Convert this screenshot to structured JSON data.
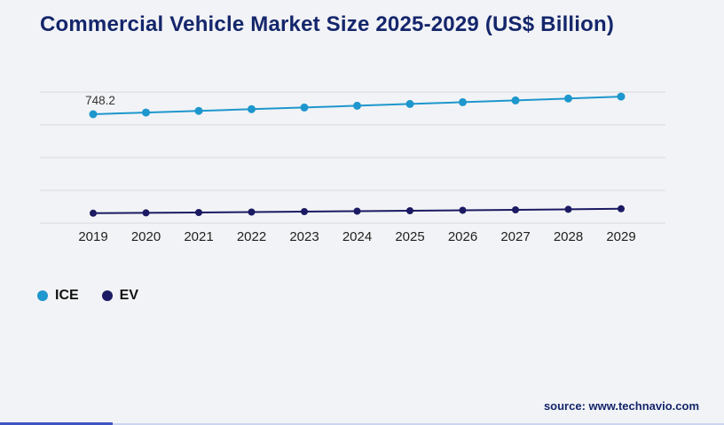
{
  "page": {
    "title": "Commercial Vehicle Market Size 2025-2029 (US$ Billion)",
    "source_text": "source: www.technavio.com",
    "background": "#f2f3f6"
  },
  "legend": {
    "items": [
      {
        "label": "ICE",
        "color": "#1d97cd"
      },
      {
        "label": "EV",
        "color": "#1b1a63"
      }
    ]
  },
  "chart_data": {
    "type": "line",
    "title": "Commercial Vehicle Market Size 2025-2029 (US$ Billion)",
    "xlabel": "",
    "ylabel": "",
    "x": [
      "2019",
      "2020",
      "2021",
      "2022",
      "2023",
      "2024",
      "2025",
      "2026",
      "2027",
      "2028",
      "2029"
    ],
    "series": [
      {
        "name": "ICE",
        "color": "#1d97cd",
        "values": [
          748.2,
          759.5,
          770.9,
          782.5,
          794.3,
          806.2,
          818.3,
          830.6,
          843.1,
          855.8,
          868.7
        ]
      },
      {
        "name": "EV",
        "color": "#1b1a63",
        "values": [
          68.0,
          70.5,
          73.2,
          76.0,
          78.9,
          81.9,
          85.0,
          88.2,
          91.5,
          95.0,
          98.6
        ]
      }
    ],
    "data_labels": [
      {
        "series": "ICE",
        "x": "2019",
        "text": "748.2"
      }
    ],
    "ylim": [
      0,
      900
    ],
    "gridlines": 5,
    "grid": true,
    "legend_position": "bottom-left"
  }
}
